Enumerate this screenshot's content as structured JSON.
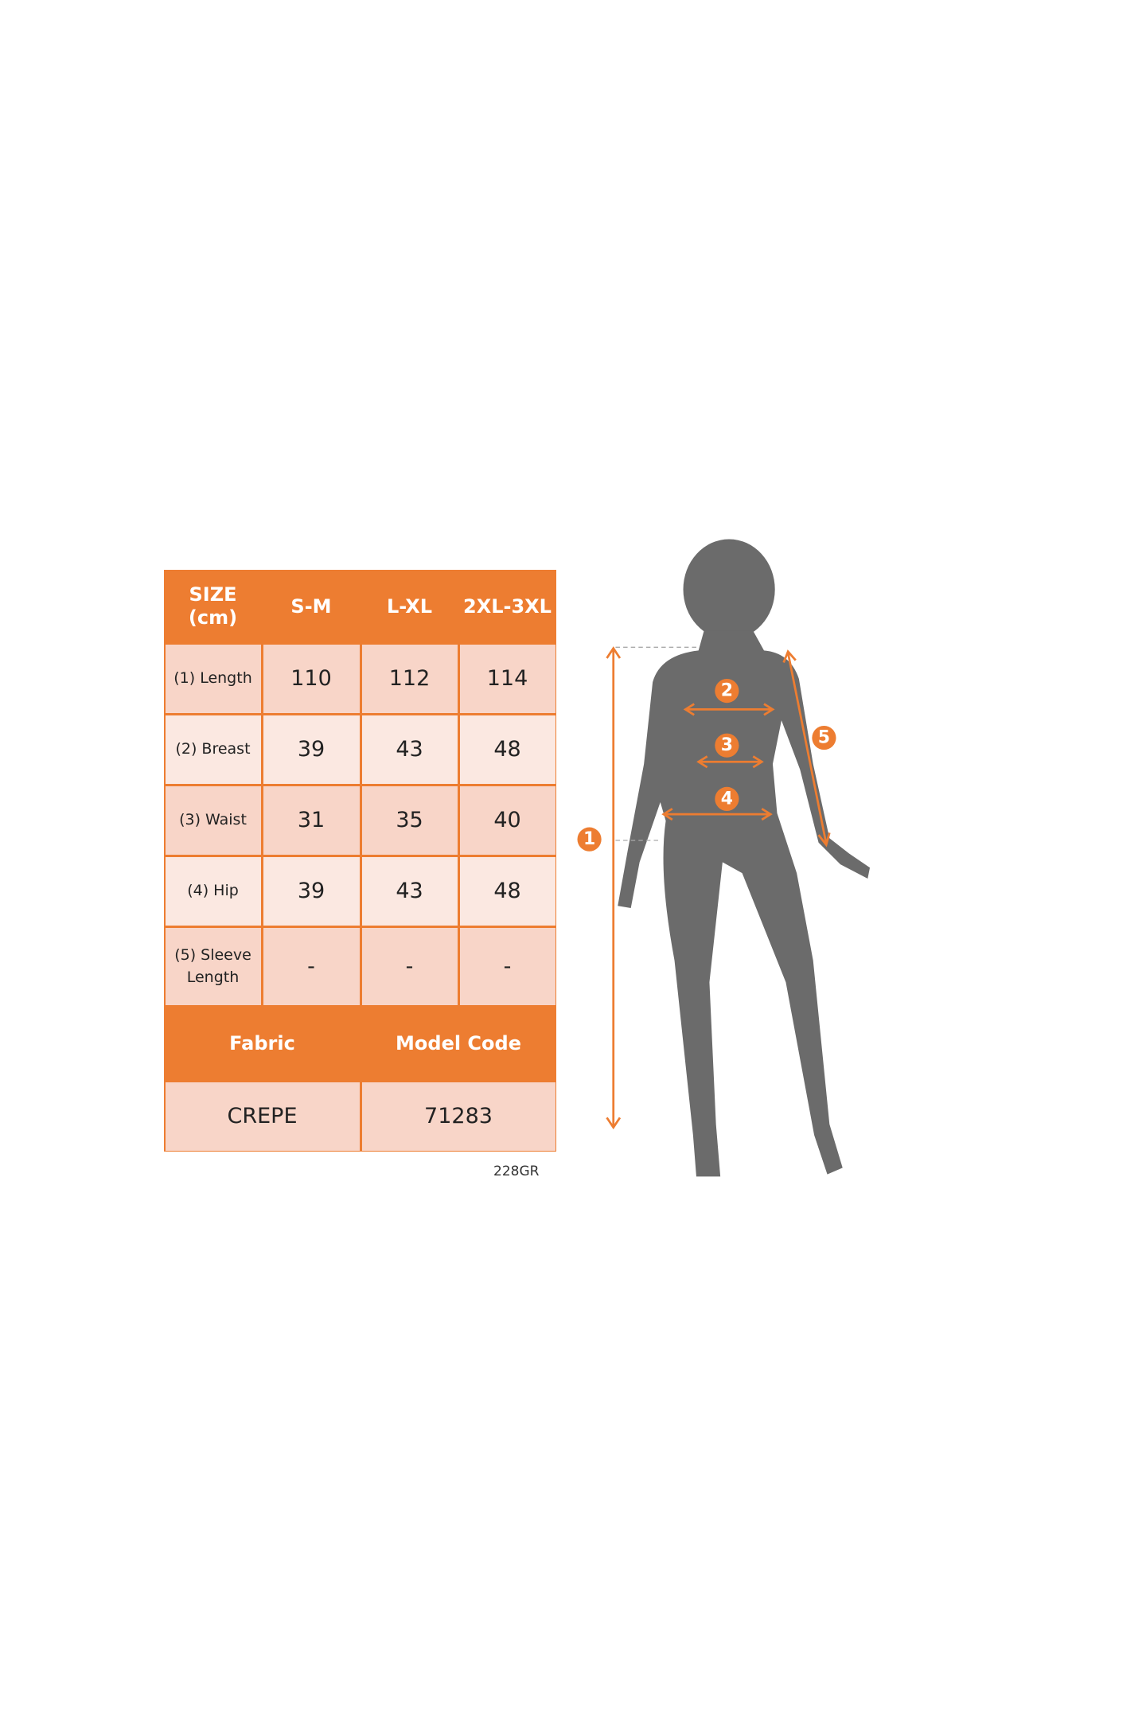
{
  "table": {
    "header": [
      "SIZE (cm)",
      "S-M",
      "L-XL",
      "2XL-3XL"
    ],
    "rows": [
      {
        "label": "(1) Length",
        "values": [
          "110",
          "112",
          "114"
        ]
      },
      {
        "label": "(2) Breast",
        "values": [
          "39",
          "43",
          "48"
        ]
      },
      {
        "label": "(3) Waist",
        "values": [
          "31",
          "35",
          "40"
        ]
      },
      {
        "label": "(4) Hip",
        "values": [
          "39",
          "43",
          "48"
        ]
      },
      {
        "label": "(5) Sleeve Length",
        "values": [
          "-",
          "-",
          "-"
        ]
      }
    ],
    "footer_header": [
      "Fabric",
      "Model Code"
    ],
    "footer_values": [
      "CREPE",
      "71283"
    ]
  },
  "code_label": "228GR",
  "figure": {
    "markers": [
      "1",
      "2",
      "3",
      "4",
      "5"
    ]
  },
  "colors": {
    "accent": "#ED7D31",
    "cell_dark": "#F8D5C8",
    "cell_light": "#FBE8E1",
    "silhouette": "#6B6B6B"
  }
}
